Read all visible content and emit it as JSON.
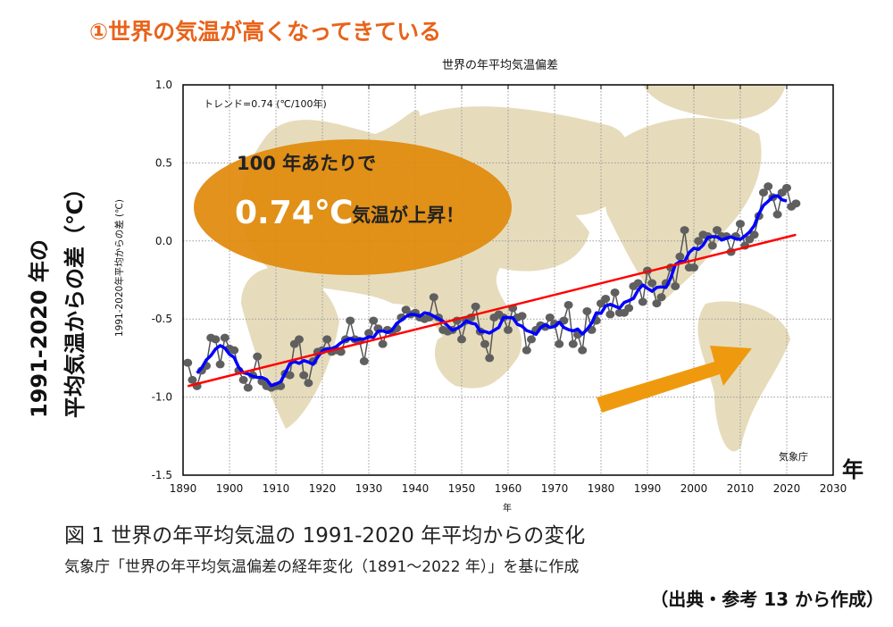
{
  "header": {
    "title": "①世界の気温が高くなってきている",
    "color": "#e8631a"
  },
  "callout": {
    "line1": "100 年あたりで",
    "value": "0.74℃",
    "line2": "気温が上昇！",
    "fill": "#e08a0c"
  },
  "side_label": {
    "line1": "1991-2020 年の",
    "line2": "平均気温からの差（℃）"
  },
  "x_unit_big": "年",
  "caption": {
    "figure": "図 1 世界の年平均気温の 1991-2020 年平均からの変化",
    "source": "気象庁「世界の年平均気温偏差の経年変化（1891～2022 年）」を基に作成",
    "citation": "（出典・参考 13 から作成）"
  },
  "chart_data": {
    "type": "line",
    "title": "世界の年平均気温偏差",
    "annotation": "トレンド=0.74 (℃/100年)",
    "credit": "気象庁",
    "xlabel": "年",
    "ylabel": "1991-2020年平均からの差 (℃)",
    "xlim": [
      1890,
      2030
    ],
    "ylim": [
      -1.5,
      1.0
    ],
    "xticks": [
      "1890",
      "1900",
      "1910",
      "1920",
      "1930",
      "1940",
      "1950",
      "1960",
      "1970",
      "1980",
      "1990",
      "2000",
      "2010",
      "2020",
      "2030"
    ],
    "yticks": [
      "1.0",
      "0.5",
      "0.0",
      "-0.5",
      "-1.0",
      "-1.5"
    ],
    "grid": true,
    "colors": {
      "points": "#555555",
      "running_mean": "#0000ff",
      "trend": "#ff0000",
      "map": "#e6dcbc"
    },
    "x_start": 1891,
    "values": [
      -0.78,
      -0.89,
      -0.93,
      -0.83,
      -0.8,
      -0.62,
      -0.63,
      -0.79,
      -0.62,
      -0.69,
      -0.7,
      -0.83,
      -0.89,
      -0.94,
      -0.86,
      -0.74,
      -0.9,
      -0.93,
      -0.94,
      -0.93,
      -0.93,
      -0.85,
      -0.86,
      -0.66,
      -0.63,
      -0.86,
      -0.91,
      -0.77,
      -0.71,
      -0.7,
      -0.63,
      -0.71,
      -0.7,
      -0.71,
      -0.63,
      -0.51,
      -0.63,
      -0.64,
      -0.77,
      -0.59,
      -0.51,
      -0.56,
      -0.66,
      -0.57,
      -0.58,
      -0.56,
      -0.49,
      -0.44,
      -0.47,
      -0.46,
      -0.49,
      -0.5,
      -0.49,
      -0.36,
      -0.49,
      -0.57,
      -0.58,
      -0.57,
      -0.51,
      -0.63,
      -0.51,
      -0.49,
      -0.42,
      -0.58,
      -0.66,
      -0.75,
      -0.49,
      -0.47,
      -0.49,
      -0.57,
      -0.43,
      -0.49,
      -0.48,
      -0.7,
      -0.63,
      -0.57,
      -0.54,
      -0.55,
      -0.49,
      -0.53,
      -0.66,
      -0.51,
      -0.41,
      -0.66,
      -0.6,
      -0.7,
      -0.45,
      -0.57,
      -0.51,
      -0.4,
      -0.37,
      -0.47,
      -0.33,
      -0.46,
      -0.46,
      -0.43,
      -0.29,
      -0.27,
      -0.39,
      -0.19,
      -0.27,
      -0.4,
      -0.36,
      -0.27,
      -0.17,
      -0.29,
      -0.1,
      0.07,
      -0.17,
      -0.17,
      0.0,
      0.04,
      0.03,
      -0.03,
      0.07,
      0.03,
      0.03,
      -0.07,
      0.03,
      0.11,
      -0.03,
      0.01,
      0.04,
      0.16,
      0.31,
      0.35,
      0.28,
      0.17,
      0.31,
      0.34,
      0.22,
      0.24
    ],
    "running_mean_window": 5,
    "trend": {
      "per_100yr": 0.74,
      "start": [
        1891,
        -0.93
      ],
      "end": [
        2022,
        0.04
      ]
    }
  }
}
